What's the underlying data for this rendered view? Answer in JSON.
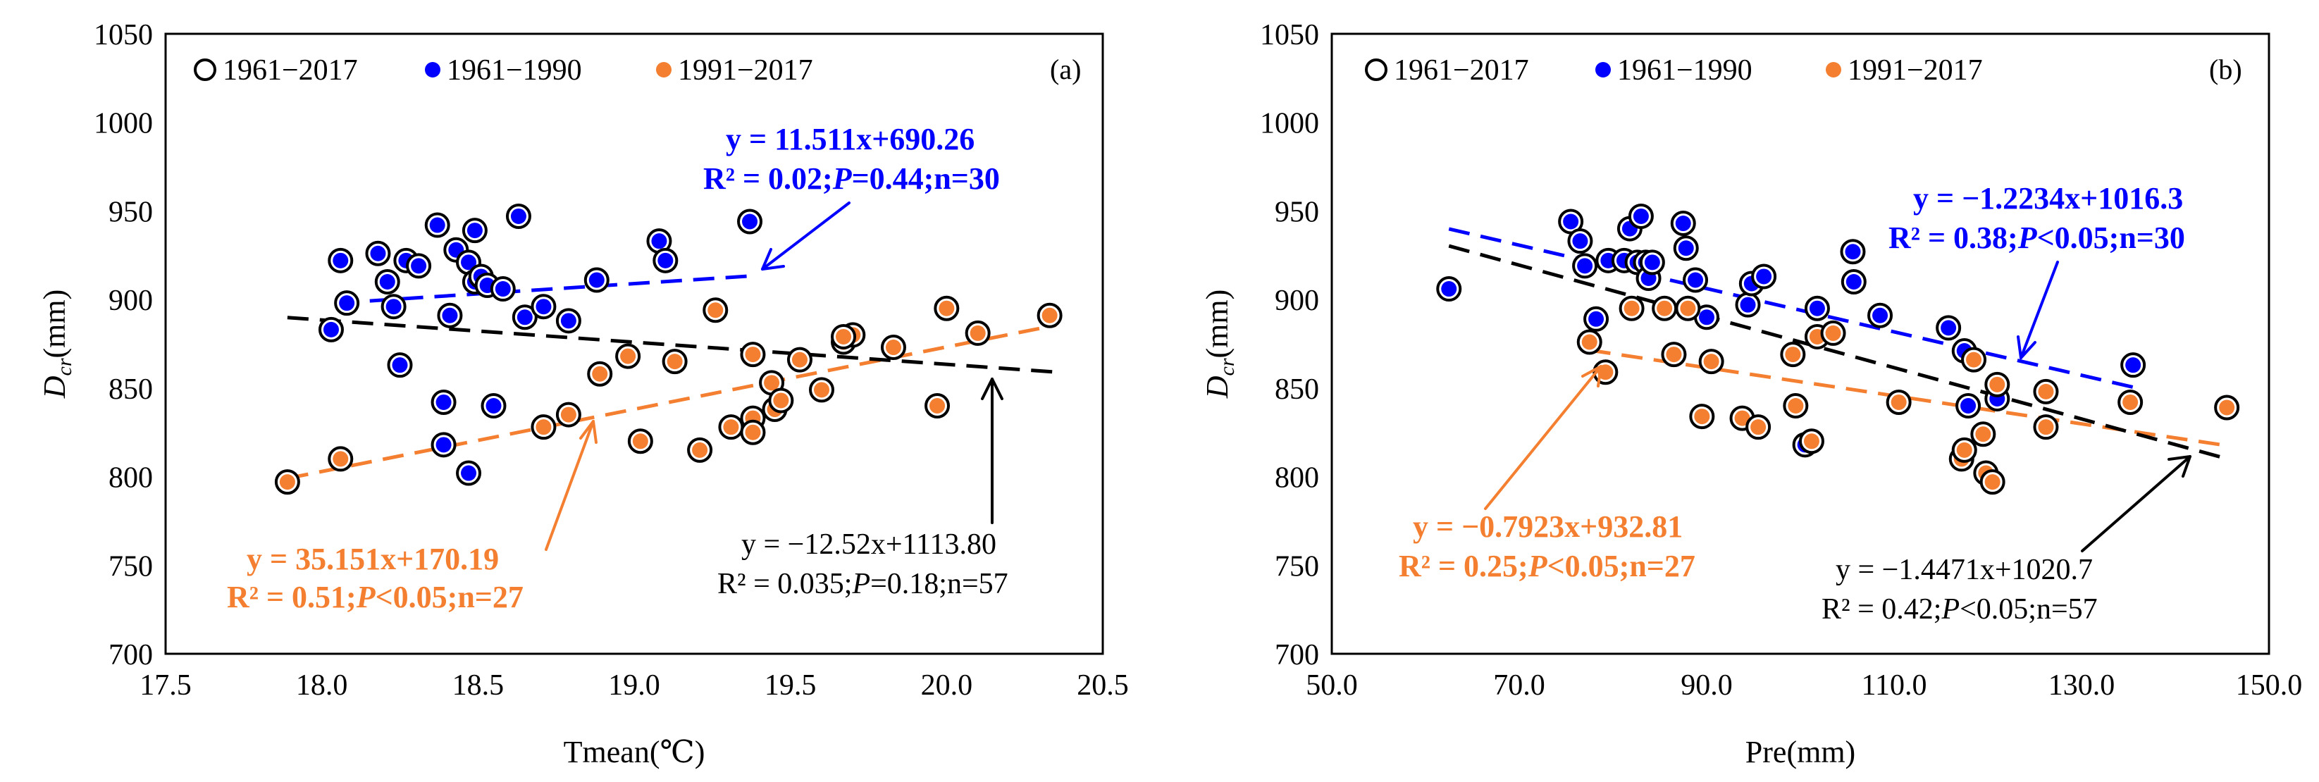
{
  "figure": {
    "legend_ring_label": "1961−2017",
    "legend_early_label": "1961−1990",
    "legend_late_label": "1991−2017",
    "colors": {
      "axis": "#000000",
      "early": "#0000ff",
      "late": "#f47f30",
      "all": "#000000"
    }
  },
  "chart_data": [
    {
      "type": "scatter",
      "panel_label": "(a)",
      "xlabel": "Tmean(℃)",
      "ylabel_main": "D",
      "ylabel_sub": "cr",
      "ylabel_unit": "(mm)",
      "xlim": [
        17.5,
        20.5
      ],
      "ylim": [
        700,
        1050
      ],
      "xticks": [
        "17.5",
        "18.0",
        "18.5",
        "19.0",
        "19.5",
        "20.0",
        "20.5"
      ],
      "yticks": [
        "700",
        "750",
        "800",
        "850",
        "900",
        "950",
        "1000",
        "1050"
      ],
      "grid": false,
      "legend": "top-left",
      "series": [
        {
          "name": "1961−1990",
          "points": [
            [
              18.03,
              883
            ],
            [
              18.06,
              922
            ],
            [
              18.08,
              898
            ],
            [
              18.18,
              926
            ],
            [
              18.21,
              910
            ],
            [
              18.23,
              896
            ],
            [
              18.25,
              863
            ],
            [
              18.27,
              922
            ],
            [
              18.31,
              919
            ],
            [
              18.37,
              942
            ],
            [
              18.39,
              842
            ],
            [
              18.39,
              818
            ],
            [
              18.41,
              891
            ],
            [
              18.43,
              928
            ],
            [
              18.47,
              802
            ],
            [
              18.47,
              921
            ],
            [
              18.49,
              939
            ],
            [
              18.49,
              910
            ],
            [
              18.51,
              913
            ],
            [
              18.53,
              908
            ],
            [
              18.55,
              840
            ],
            [
              18.58,
              906
            ],
            [
              18.63,
              947
            ],
            [
              18.65,
              890
            ],
            [
              18.71,
              896
            ],
            [
              18.79,
              888
            ],
            [
              18.88,
              911
            ],
            [
              19.08,
              933
            ],
            [
              19.1,
              922
            ],
            [
              19.37,
              944
            ]
          ]
        },
        {
          "name": "1991−2017",
          "points": [
            [
              17.89,
              797
            ],
            [
              18.06,
              810
            ],
            [
              18.71,
              828
            ],
            [
              18.79,
              835
            ],
            [
              18.89,
              858
            ],
            [
              18.98,
              868
            ],
            [
              19.02,
              820
            ],
            [
              19.13,
              865
            ],
            [
              19.21,
              815
            ],
            [
              19.26,
              894
            ],
            [
              19.31,
              828
            ],
            [
              19.38,
              869
            ],
            [
              19.38,
              833
            ],
            [
              19.38,
              825
            ],
            [
              19.44,
              853
            ],
            [
              19.45,
              838
            ],
            [
              19.47,
              843
            ],
            [
              19.53,
              866
            ],
            [
              19.6,
              849
            ],
            [
              19.67,
              876
            ],
            [
              19.7,
              880
            ],
            [
              19.83,
              873
            ],
            [
              19.97,
              840
            ],
            [
              20.0,
              895
            ],
            [
              20.1,
              881
            ],
            [
              20.33,
              891
            ],
            [
              19.67,
              879
            ]
          ]
        }
      ],
      "trend_lines": [
        {
          "name": "1961−1990",
          "slope": 11.511,
          "intercept": 690.26,
          "x_range": [
            18.05,
            19.38
          ]
        },
        {
          "name": "1991−2017",
          "slope": 35.151,
          "intercept": 170.19,
          "x_range": [
            17.89,
            20.35
          ]
        },
        {
          "name": "1961−2017",
          "slope": -12.52,
          "intercept": 1113.8,
          "x_range": [
            17.89,
            20.35
          ]
        }
      ],
      "annotations": [
        {
          "series": "1961−1990",
          "equation": "y = 11.511x+690.26",
          "stats": [
            "R² = 0.02;",
            "P",
            "=0.44;n=30"
          ]
        },
        {
          "series": "1991−2017",
          "equation": "y = 35.151x+170.19",
          "stats": [
            "R² = 0.51;",
            "P",
            "<0.05;n=27"
          ]
        },
        {
          "series": "1961−2017",
          "equation": "y = −12.52x+1113.80",
          "stats": [
            "R² = 0.035;",
            "P",
            "=0.18;n=57"
          ]
        }
      ]
    },
    {
      "type": "scatter",
      "panel_label": "(b)",
      "xlabel": "Pre(mm)",
      "ylabel_main": "D",
      "ylabel_sub": "cr",
      "ylabel_unit": "(mm)",
      "xlim": [
        50,
        150
      ],
      "ylim": [
        700,
        1050
      ],
      "xticks": [
        "50.0",
        "70.0",
        "90.0",
        "110.0",
        "130.0",
        "150.0"
      ],
      "yticks": [
        "700",
        "750",
        "800",
        "850",
        "900",
        "950",
        "1000",
        "1050"
      ],
      "grid": false,
      "legend": "top-left",
      "series": [
        {
          "name": "1961−1990",
          "points": [
            [
              62.5,
              906
            ],
            [
              75.5,
              944
            ],
            [
              76.5,
              933
            ],
            [
              77.0,
              919
            ],
            [
              78.2,
              889
            ],
            [
              79.5,
              922
            ],
            [
              81.2,
              922
            ],
            [
              81.8,
              940
            ],
            [
              82.6,
              921
            ],
            [
              83.0,
              947
            ],
            [
              83.5,
              921
            ],
            [
              83.8,
              912
            ],
            [
              84.2,
              921
            ],
            [
              87.5,
              943
            ],
            [
              87.8,
              929
            ],
            [
              88.8,
              911
            ],
            [
              90.0,
              890
            ],
            [
              94.4,
              897
            ],
            [
              94.8,
              909
            ],
            [
              96.1,
              913
            ],
            [
              100.5,
              818
            ],
            [
              101.8,
              895
            ],
            [
              105.6,
              927
            ],
            [
              105.7,
              910
            ],
            [
              108.5,
              891
            ],
            [
              115.8,
              884
            ],
            [
              117.5,
              871
            ],
            [
              117.9,
              840
            ],
            [
              121.0,
              844
            ],
            [
              135.5,
              863
            ]
          ]
        },
        {
          "name": "1991−2017",
          "points": [
            [
              77.5,
              876
            ],
            [
              79.2,
              859
            ],
            [
              82.0,
              895
            ],
            [
              85.5,
              895
            ],
            [
              86.5,
              869
            ],
            [
              88.0,
              895
            ],
            [
              89.5,
              834
            ],
            [
              90.5,
              865
            ],
            [
              93.8,
              833
            ],
            [
              95.5,
              828
            ],
            [
              99.2,
              869
            ],
            [
              99.5,
              840
            ],
            [
              101.2,
              820
            ],
            [
              101.8,
              879
            ],
            [
              103.5,
              881
            ],
            [
              110.5,
              842
            ],
            [
              117.2,
              810
            ],
            [
              117.5,
              815
            ],
            [
              118.5,
              866
            ],
            [
              119.5,
              824
            ],
            [
              119.8,
              802
            ],
            [
              120.5,
              797
            ],
            [
              121.0,
              852
            ],
            [
              126.2,
              848
            ],
            [
              126.2,
              828
            ],
            [
              135.2,
              842
            ],
            [
              145.5,
              839
            ]
          ]
        }
      ],
      "trend_lines": [
        {
          "name": "1961−1990",
          "slope": -1.2234,
          "intercept": 1016.3,
          "x_range": [
            62.5,
            135.5
          ]
        },
        {
          "name": "1991−2017",
          "slope": -0.7923,
          "intercept": 932.81,
          "x_range": [
            77.5,
            145.5
          ]
        },
        {
          "name": "1961−2017",
          "slope": -1.4471,
          "intercept": 1020.7,
          "x_range": [
            62.5,
            145.5
          ]
        }
      ],
      "annotations": [
        {
          "series": "1961−1990",
          "equation": "y = −1.2234x+1016.3",
          "stats": [
            "R² = 0.38;",
            "P",
            "<0.05;n=30"
          ]
        },
        {
          "series": "1991−2017",
          "equation": "y = −0.7923x+932.81",
          "stats": [
            "R² = 0.25;",
            "P",
            "<0.05;n=27"
          ]
        },
        {
          "series": "1961−2017",
          "equation": "y = −1.4471x+1020.7",
          "stats": [
            "R² = 0.42;",
            "P",
            "<0.05;n=57"
          ]
        }
      ]
    }
  ]
}
